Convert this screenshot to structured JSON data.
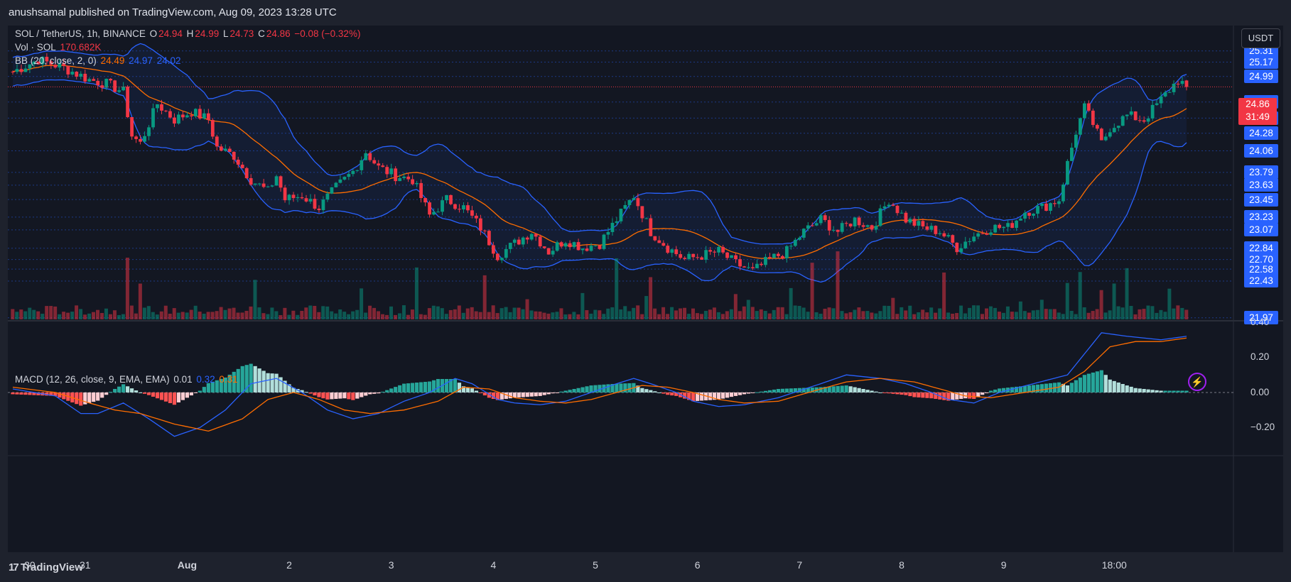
{
  "publisher_line": "anushsamal published on TradingView.com, Aug 09, 2023 13:28 UTC",
  "brand": "TradingView",
  "unit_button": "USDT",
  "legend": {
    "symbol": "SOL / TetherUS, 1h, BINANCE",
    "o_label": "O",
    "o_val": "24.94",
    "h_label": "H",
    "h_val": "24.99",
    "l_label": "L",
    "l_val": "24.73",
    "c_label": "C",
    "c_val": "24.86",
    "change": "−0.08 (−0.32%)",
    "vol_label": "Vol · SOL",
    "vol_val": "170.682K",
    "bb_label": "BB (20, close, 2, 0)",
    "bb_mid": "24.49",
    "bb_up": "24.97",
    "bb_low": "24.02",
    "macd_label": "MACD (12, 26, close, 9, EMA, EMA)",
    "macd_hist": "0.01",
    "macd_line": "0.32",
    "macd_signal": "0.31"
  },
  "last_price": {
    "price": "24.86",
    "countdown": "31:49"
  },
  "colors": {
    "up": "#089981",
    "down": "#f23645",
    "bb": "#2962ff",
    "basis": "#ff6d00",
    "macd": "#2962ff",
    "signal": "#ff6d00"
  },
  "chart_data": {
    "type": "candlestick",
    "price_axis_labels": [
      "25.31",
      "25.17",
      "24.99",
      "24.67",
      "24.47",
      "24.28",
      "24.06",
      "23.79",
      "23.63",
      "23.45",
      "23.23",
      "23.07",
      "22.84",
      "22.70",
      "22.58",
      "22.43",
      "21.97"
    ],
    "price_range": [
      21.95,
      25.45
    ],
    "time_labels": [
      "30",
      "31",
      "Aug",
      "2",
      "3",
      "4",
      "5",
      "6",
      "7",
      "8",
      "9",
      "18:00"
    ],
    "macd_axis_labels": [
      "0.40",
      "0.20",
      "0.00",
      "−0.20"
    ],
    "macd_range": [
      -0.36,
      0.4
    ],
    "close_path": [
      [
        0,
        25.05
      ],
      [
        6,
        25.2
      ],
      [
        12,
        25.1
      ],
      [
        18,
        24.95
      ],
      [
        22,
        24.9
      ],
      [
        26,
        24.8
      ],
      [
        28,
        24.25
      ],
      [
        30,
        24.15
      ],
      [
        34,
        24.65
      ],
      [
        38,
        24.45
      ],
      [
        42,
        24.55
      ],
      [
        46,
        24.45
      ],
      [
        48,
        24.1
      ],
      [
        52,
        24.0
      ],
      [
        56,
        23.7
      ],
      [
        60,
        23.55
      ],
      [
        62,
        23.75
      ],
      [
        64,
        23.45
      ],
      [
        68,
        23.5
      ],
      [
        72,
        23.35
      ],
      [
        76,
        23.6
      ],
      [
        80,
        23.8
      ],
      [
        83,
        24.05
      ],
      [
        86,
        23.85
      ],
      [
        90,
        23.75
      ],
      [
        94,
        23.7
      ],
      [
        98,
        23.25
      ],
      [
        102,
        23.45
      ],
      [
        106,
        23.35
      ],
      [
        110,
        23.1
      ],
      [
        114,
        22.75
      ],
      [
        118,
        22.9
      ],
      [
        122,
        23.05
      ],
      [
        126,
        22.8
      ],
      [
        130,
        22.95
      ],
      [
        134,
        22.85
      ],
      [
        138,
        22.9
      ],
      [
        142,
        23.2
      ],
      [
        146,
        23.5
      ],
      [
        150,
        23.05
      ],
      [
        154,
        22.85
      ],
      [
        158,
        22.7
      ],
      [
        162,
        22.75
      ],
      [
        166,
        22.8
      ],
      [
        170,
        22.65
      ],
      [
        174,
        22.55
      ],
      [
        178,
        22.7
      ],
      [
        182,
        22.8
      ],
      [
        186,
        23.05
      ],
      [
        190,
        23.2
      ],
      [
        194,
        23.05
      ],
      [
        198,
        23.2
      ],
      [
        202,
        23.1
      ],
      [
        206,
        23.45
      ],
      [
        210,
        23.2
      ],
      [
        214,
        23.1
      ],
      [
        218,
        23.05
      ],
      [
        222,
        22.85
      ],
      [
        226,
        23.0
      ],
      [
        230,
        23.1
      ],
      [
        234,
        23.1
      ],
      [
        238,
        23.3
      ],
      [
        242,
        23.35
      ],
      [
        246,
        23.45
      ],
      [
        248,
        23.9
      ],
      [
        250,
        24.3
      ],
      [
        252,
        24.6
      ],
      [
        254,
        24.4
      ],
      [
        256,
        24.15
      ],
      [
        258,
        24.35
      ],
      [
        262,
        24.5
      ],
      [
        266,
        24.45
      ],
      [
        270,
        24.7
      ],
      [
        274,
        24.95
      ],
      [
        276,
        24.86
      ]
    ],
    "macd_series": {
      "macd": [
        [
          0,
          0.02
        ],
        [
          10,
          -0.02
        ],
        [
          16,
          -0.12
        ],
        [
          20,
          -0.12
        ],
        [
          26,
          -0.06
        ],
        [
          32,
          -0.15
        ],
        [
          38,
          -0.25
        ],
        [
          44,
          -0.2
        ],
        [
          50,
          -0.1
        ],
        [
          56,
          0.05
        ],
        [
          62,
          0.08
        ],
        [
          68,
          0.0
        ],
        [
          74,
          -0.1
        ],
        [
          80,
          -0.15
        ],
        [
          86,
          -0.12
        ],
        [
          92,
          -0.05
        ],
        [
          98,
          0.0
        ],
        [
          104,
          0.08
        ],
        [
          108,
          0.05
        ],
        [
          114,
          -0.04
        ],
        [
          118,
          -0.06
        ],
        [
          124,
          -0.07
        ],
        [
          130,
          -0.05
        ],
        [
          136,
          0.0
        ],
        [
          142,
          0.05
        ],
        [
          146,
          0.08
        ],
        [
          150,
          0.05
        ],
        [
          156,
          0.0
        ],
        [
          160,
          -0.05
        ],
        [
          166,
          -0.08
        ],
        [
          172,
          -0.07
        ],
        [
          180,
          -0.03
        ],
        [
          190,
          0.05
        ],
        [
          196,
          0.1
        ],
        [
          204,
          0.08
        ],
        [
          210,
          0.05
        ],
        [
          216,
          0.0
        ],
        [
          220,
          -0.04
        ],
        [
          226,
          -0.06
        ],
        [
          232,
          0.0
        ],
        [
          240,
          0.05
        ],
        [
          248,
          0.1
        ],
        [
          256,
          0.34
        ],
        [
          262,
          0.32
        ],
        [
          270,
          0.3
        ],
        [
          276,
          0.32
        ]
      ],
      "signal": [
        [
          0,
          0.03
        ],
        [
          10,
          0.0
        ],
        [
          18,
          -0.06
        ],
        [
          24,
          -0.1
        ],
        [
          30,
          -0.12
        ],
        [
          38,
          -0.18
        ],
        [
          46,
          -0.22
        ],
        [
          54,
          -0.15
        ],
        [
          60,
          -0.04
        ],
        [
          66,
          0.0
        ],
        [
          72,
          -0.04
        ],
        [
          78,
          -0.1
        ],
        [
          84,
          -0.12
        ],
        [
          92,
          -0.1
        ],
        [
          100,
          -0.05
        ],
        [
          106,
          0.03
        ],
        [
          112,
          0.02
        ],
        [
          118,
          -0.03
        ],
        [
          124,
          -0.05
        ],
        [
          130,
          -0.06
        ],
        [
          136,
          -0.04
        ],
        [
          142,
          0.0
        ],
        [
          148,
          0.04
        ],
        [
          154,
          0.03
        ],
        [
          160,
          0.0
        ],
        [
          166,
          -0.04
        ],
        [
          172,
          -0.06
        ],
        [
          180,
          -0.05
        ],
        [
          190,
          0.02
        ],
        [
          196,
          0.06
        ],
        [
          204,
          0.08
        ],
        [
          212,
          0.06
        ],
        [
          218,
          0.02
        ],
        [
          224,
          -0.02
        ],
        [
          230,
          -0.03
        ],
        [
          238,
          0.0
        ],
        [
          246,
          0.03
        ],
        [
          252,
          0.12
        ],
        [
          258,
          0.26
        ],
        [
          264,
          0.29
        ],
        [
          270,
          0.29
        ],
        [
          276,
          0.31
        ]
      ]
    }
  }
}
